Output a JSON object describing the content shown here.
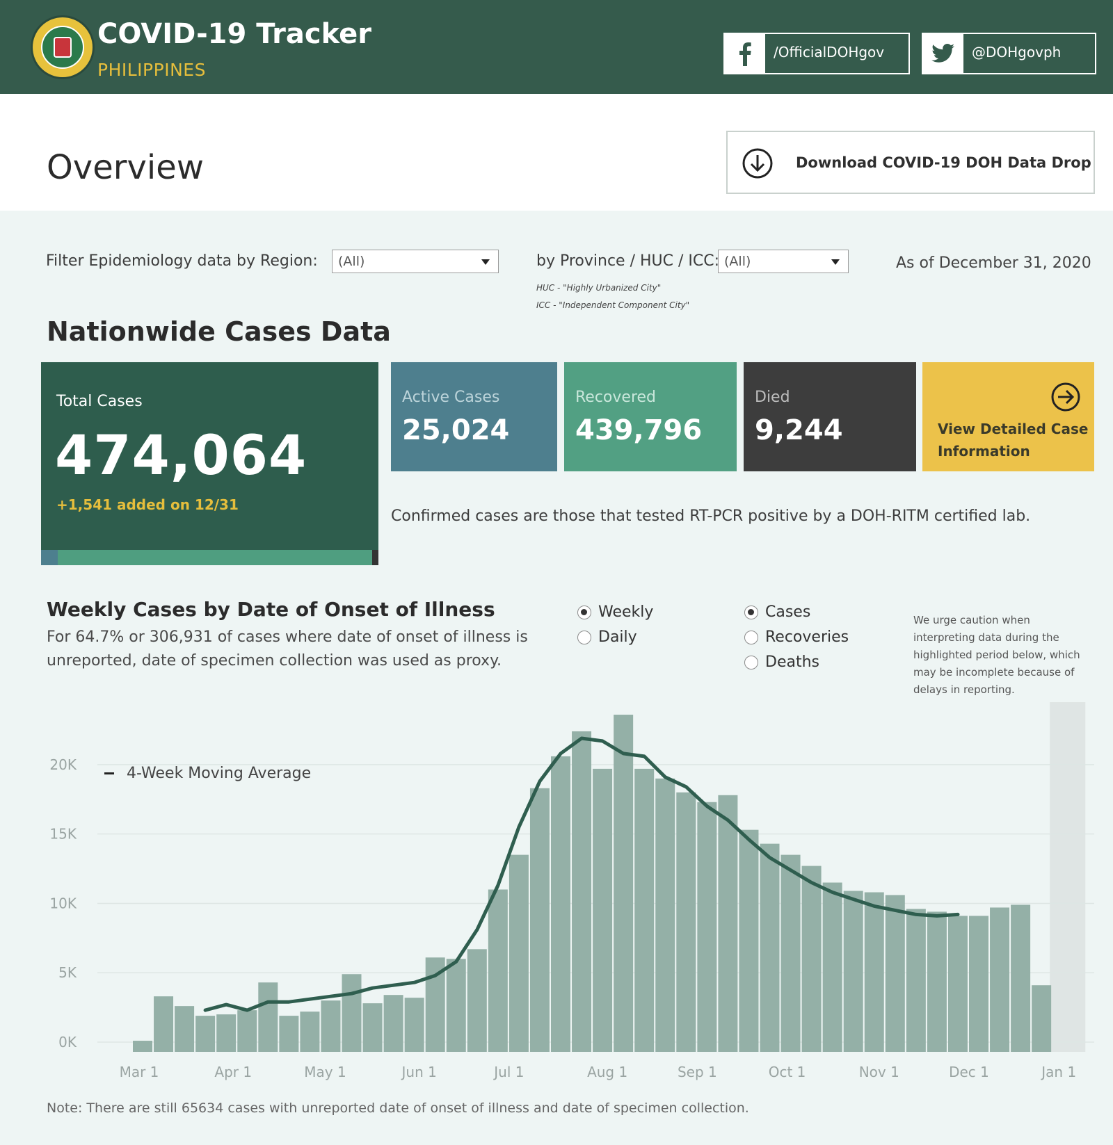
{
  "header": {
    "title": "COVID-19 Tracker",
    "subtitle": "PHILIPPINES",
    "facebook_label": "/OfficialDOHgov",
    "twitter_label": "@DOHgovph"
  },
  "overview": {
    "title": "Overview",
    "download_label": "Download COVID-19 DOH Data Drop"
  },
  "filters": {
    "region_label": "Filter Epidemiology data by Region:",
    "region_value": "(All)",
    "province_label": "by Province / HUC / ICC:",
    "province_value": "(All)",
    "huc_note": "HUC - \"Highly Urbanized City\"",
    "icc_note": "ICC - \"Independent Component City\"",
    "as_of": "As of December 31, 2020"
  },
  "cases": {
    "section_title": "Nationwide Cases Data",
    "total_label": "Total Cases",
    "total_value": "474,064",
    "total_added": "+1,541 added on 12/31",
    "active_label": "Active Cases",
    "active_value": "25,024",
    "recovered_label": "Recovered",
    "recovered_value": "439,796",
    "died_label": "Died",
    "died_value": "9,244",
    "detail_label": "View Detailed Case Information",
    "confirmed_note": "Confirmed cases are those that tested RT-PCR positive by a DOH-RITM certified lab."
  },
  "weekly": {
    "title": "Weekly Cases by Date of Onset of Illness",
    "subtitle": "For 64.7% or 306,931 of cases where date of onset of illness is unreported, date of specimen collection was used as proxy.",
    "period_options": [
      {
        "label": "Weekly",
        "selected": true
      },
      {
        "label": "Daily",
        "selected": false
      }
    ],
    "metric_options": [
      {
        "label": "Cases",
        "selected": true
      },
      {
        "label": "Recoveries",
        "selected": false
      },
      {
        "label": "Deaths",
        "selected": false
      }
    ],
    "caution": "We urge caution when interpreting data during the highlighted period below, which may be incomplete because of delays in reporting.",
    "bottom_note": "Note: There are still 65634 cases with unreported date of onset of illness and date of specimen collection."
  },
  "chart_data": {
    "type": "bar",
    "legend_label": "4-Week Moving Average",
    "y_ticks": [
      "0K",
      "5K",
      "10K",
      "15K",
      "20K"
    ],
    "x_tick_labels": [
      "Mar 1",
      "Apr 1",
      "May 1",
      "Jun 1",
      "Jul 1",
      "Aug 1",
      "Sep 1",
      "Oct 1",
      "Nov 1",
      "Dec 1",
      "Jan 1"
    ],
    "x_tick_week_index": [
      0.3,
      4.8,
      9.2,
      13.7,
      18.0,
      22.7,
      27.0,
      31.3,
      35.7,
      40.0,
      44.3
    ],
    "ylim": [
      -700,
      23000
    ],
    "values": [
      100,
      3300,
      2600,
      1900,
      2000,
      2300,
      4300,
      1900,
      2200,
      3000,
      4900,
      2800,
      3400,
      3200,
      6100,
      6000,
      6700,
      11000,
      13500,
      18300,
      20600,
      22400,
      19700,
      23600,
      19700,
      19000,
      18000,
      17300,
      17800,
      15300,
      14300,
      13500,
      12700,
      11500,
      10900,
      10800,
      10600,
      9600,
      9400,
      9100,
      9100,
      9700,
      9900,
      4100
    ],
    "moving_average": [
      null,
      null,
      null,
      2300,
      2700,
      2300,
      2900,
      2900,
      3100,
      3300,
      3500,
      3900,
      4100,
      4300,
      4800,
      5800,
      8100,
      11300,
      15500,
      18800,
      20800,
      21900,
      21700,
      20800,
      20600,
      19100,
      18400,
      17000,
      16000,
      14600,
      13300,
      12400,
      11500,
      10800,
      10300,
      9800,
      9500,
      9200,
      9100,
      9200,
      null,
      null,
      null,
      null
    ],
    "highlight_weeks": [
      43,
      43
    ],
    "series_color": "#94b0a7",
    "line_color": "#2f5e4f",
    "highlight_color": "#dfe5e4"
  }
}
